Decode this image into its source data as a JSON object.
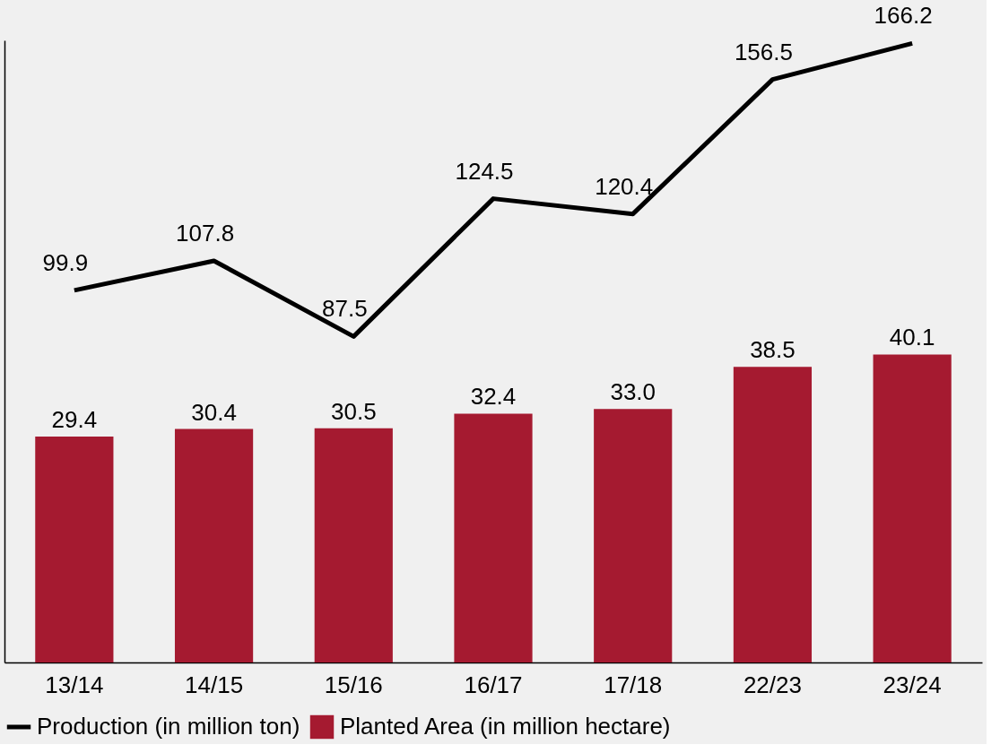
{
  "chart_data": {
    "type": "bar",
    "categories": [
      "13/14",
      "14/15",
      "15/16",
      "16/17",
      "17/18",
      "22/23",
      "23/24"
    ],
    "series": [
      {
        "name": "Production (in million ton)",
        "type": "line",
        "axis": "y2",
        "color": "#000000",
        "values": [
          99.9,
          107.8,
          87.5,
          124.5,
          120.4,
          156.5,
          166.2
        ],
        "value_labels": [
          "99.9",
          "107.8",
          "87.5",
          "124.5",
          "120.4",
          "156.5",
          "166.2"
        ]
      },
      {
        "name": "Planted Area (in million hectare)",
        "color": "#a51a30",
        "values": [
          29.4,
          30.4,
          30.5,
          32.4,
          33.0,
          38.5,
          40.1
        ],
        "value_labels": [
          "29.4",
          "30.4",
          "30.5",
          "32.4",
          "33.0",
          "38.5",
          "40.1"
        ]
      }
    ],
    "ylim": [
      0,
      81
    ],
    "y2lim": [
      0,
      167
    ],
    "tick_labels": "x",
    "legend": "bottom",
    "marker": "none"
  }
}
